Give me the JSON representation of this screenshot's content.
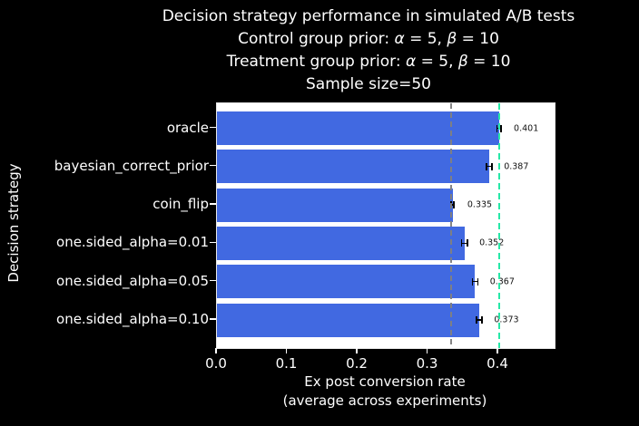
{
  "title": {
    "line1": "Decision strategy performance in simulated A/B tests",
    "line2_prefix": "Control group prior: ",
    "line3_prefix": "Treatment group prior: ",
    "line4": "Sample size=50",
    "prior_math": {
      "alpha": "α",
      "eq1": " = 5, ",
      "beta": "β",
      "eq2": " = 10"
    }
  },
  "chart_data": {
    "type": "bar",
    "orientation": "horizontal",
    "title": "Decision strategy performance in simulated A/B tests\nControl group prior: α = 5, β = 10\nTreatment group prior: α = 5, β = 10\nSample size=50",
    "categories": [
      "oracle",
      "bayesian_correct_prior",
      "coin_flip",
      "one.sided_alpha=0.01",
      "one.sided_alpha=0.05",
      "one.sided_alpha=0.10"
    ],
    "values": [
      0.401,
      0.387,
      0.335,
      0.352,
      0.367,
      0.373
    ],
    "value_labels": [
      "0.401",
      "0.387",
      "0.335",
      "0.352",
      "0.367",
      "0.373"
    ],
    "error_bars": [
      0.003,
      0.004,
      0.002,
      0.004,
      0.004,
      0.004
    ],
    "xlabel_line1": "Ex post conversion rate",
    "xlabel_line2": "(average across experiments)",
    "ylabel": "Decision strategy",
    "x_ticks": [
      0.0,
      0.1,
      0.2,
      0.3,
      0.4
    ],
    "x_tick_labels": [
      "0.0",
      "0.1",
      "0.2",
      "0.3",
      "0.4"
    ],
    "xlim": [
      0,
      0.48
    ],
    "grid": false,
    "reference_lines": [
      {
        "name": "prior-mean-line",
        "value": 0.3333,
        "color": "#808080",
        "style": "dashed"
      },
      {
        "name": "oracle-line",
        "value": 0.401,
        "color": "#26e8a7",
        "style": "dashed"
      }
    ],
    "colors": {
      "bar": "#4169e1",
      "figure_background": "#000000",
      "plot_background": "#ffffff",
      "text": "#ffffff",
      "value_label_text": "#111111",
      "error_bar": "#000000"
    }
  }
}
